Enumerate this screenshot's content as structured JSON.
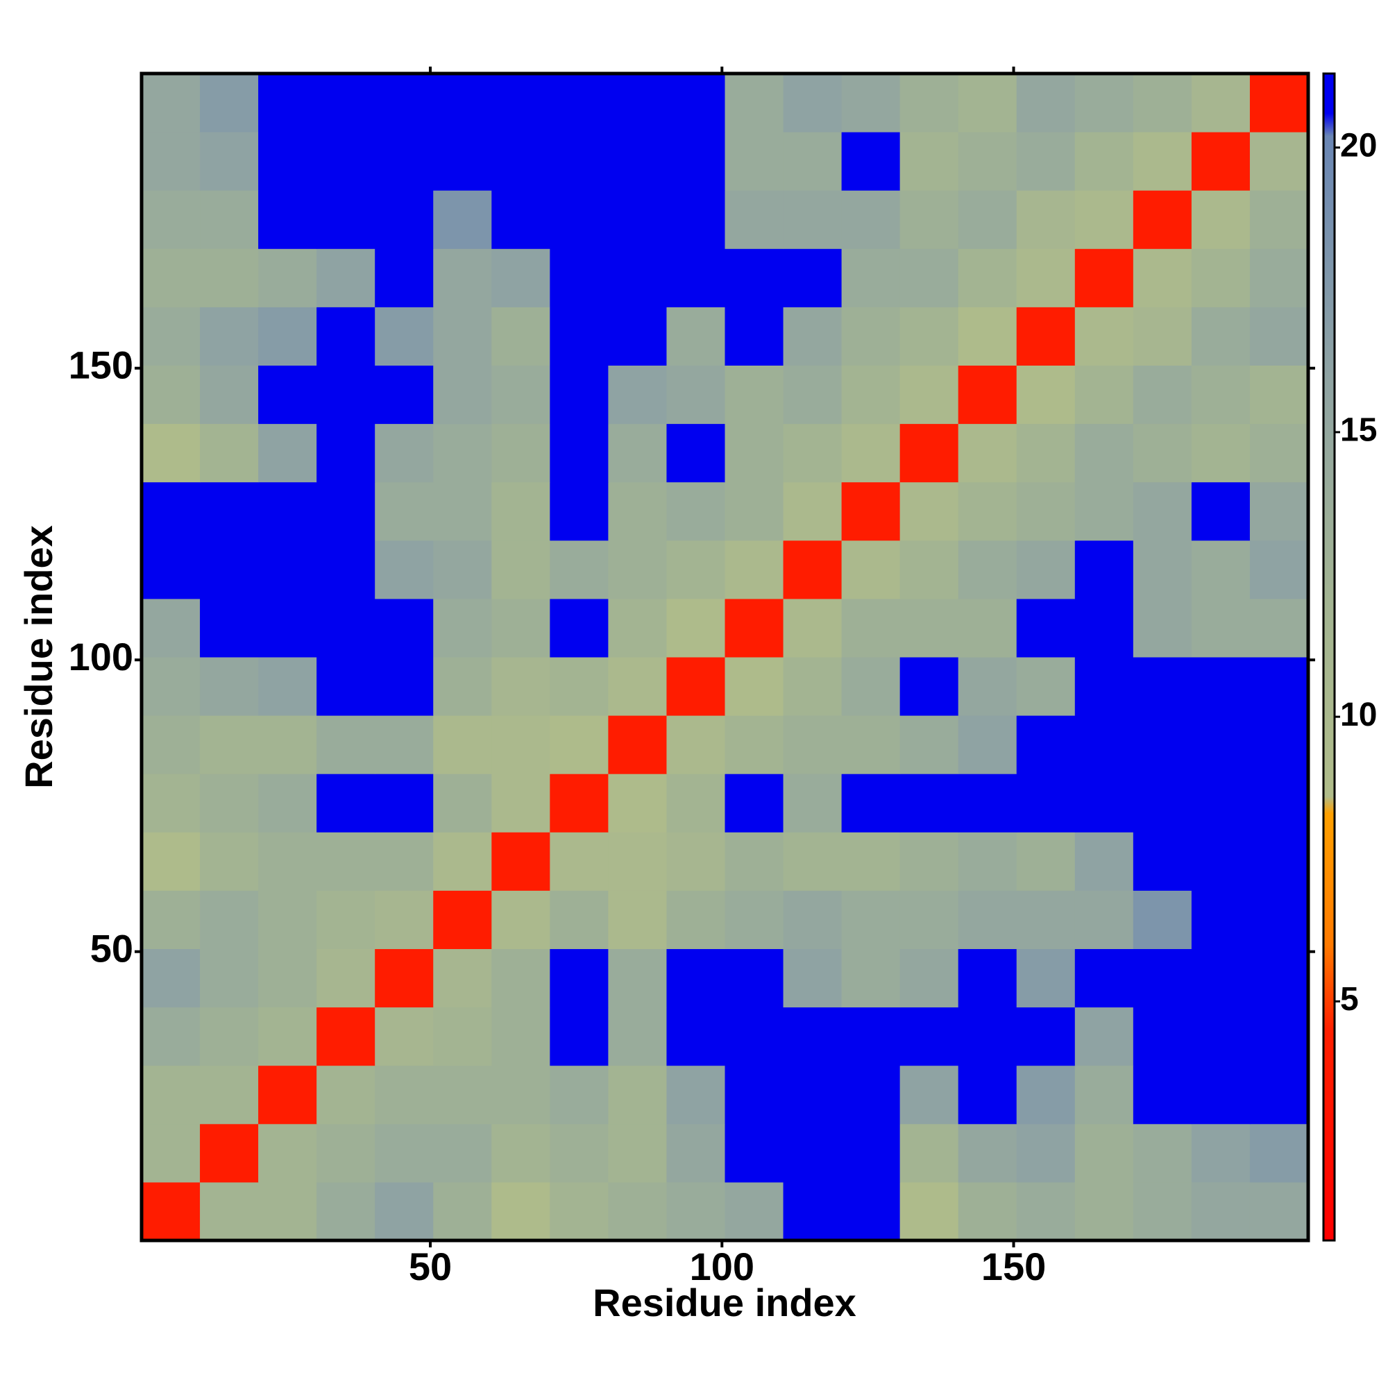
{
  "chart_data": {
    "type": "heatmap",
    "xlabel": "Residue index",
    "ylabel": "Residue index",
    "x": [
      1,
      11,
      21,
      31,
      41,
      51,
      61,
      71,
      81,
      91,
      101,
      111,
      121,
      131,
      141,
      151,
      161,
      171,
      181,
      191
    ],
    "y": [
      1,
      11,
      21,
      31,
      41,
      51,
      61,
      71,
      81,
      91,
      101,
      111,
      121,
      131,
      141,
      151,
      161,
      171,
      181,
      191
    ],
    "xlim": [
      0.5,
      200.5
    ],
    "ylim": [
      0.5,
      200.5
    ],
    "xticks": [
      50,
      100,
      150
    ],
    "yticks": [
      50,
      100,
      150
    ],
    "clim": [
      0.8,
      21.3
    ],
    "cticks": [
      5,
      10,
      15,
      20
    ],
    "colorscale": [
      [
        0.8,
        "#ff0000"
      ],
      [
        4.5,
        "#ff2000"
      ],
      [
        6,
        "#ff7a00"
      ],
      [
        8.3,
        "#ffa000"
      ],
      [
        8.6,
        "#b0bc8a"
      ],
      [
        12,
        "#a3b492"
      ],
      [
        16,
        "#8fa3a3"
      ],
      [
        20.2,
        "#6a86b4"
      ],
      [
        20.6,
        "#0000f0"
      ],
      [
        21.3,
        "#0000f0"
      ]
    ],
    "z": [
      [
        4,
        12,
        12,
        14,
        16,
        13,
        9,
        12,
        13,
        14,
        15,
        21,
        21,
        9,
        13,
        14,
        13,
        14,
        15,
        15
      ],
      [
        12,
        4,
        12,
        13,
        14,
        14,
        12,
        13,
        12,
        15,
        21,
        21,
        21,
        12,
        15,
        16,
        13,
        14,
        16,
        17
      ],
      [
        12,
        12,
        4,
        12,
        13,
        13,
        13,
        14,
        12,
        16,
        21,
        21,
        21,
        16,
        21,
        17,
        14,
        21,
        21,
        21
      ],
      [
        14,
        13,
        12,
        4,
        11,
        12,
        13,
        21,
        14,
        21,
        21,
        21,
        21,
        21,
        21,
        21,
        16,
        21,
        21,
        21
      ],
      [
        16,
        14,
        13,
        11,
        4,
        11,
        13,
        21,
        14,
        21,
        21,
        16,
        14,
        15,
        21,
        17,
        21,
        21,
        21,
        21
      ],
      [
        13,
        14,
        13,
        12,
        11,
        4,
        10,
        13,
        10,
        13,
        14,
        15,
        14,
        14,
        15,
        15,
        15,
        18,
        21,
        21
      ],
      [
        9,
        12,
        13,
        13,
        13,
        10,
        4,
        10,
        10,
        11,
        13,
        12,
        12,
        13,
        14,
        13,
        16,
        21,
        21,
        21
      ],
      [
        12,
        13,
        14,
        21,
        21,
        13,
        10,
        4,
        9,
        12,
        21,
        14,
        21,
        21,
        21,
        21,
        21,
        21,
        21,
        21
      ],
      [
        13,
        12,
        12,
        14,
        14,
        10,
        10,
        9,
        4,
        10,
        12,
        13,
        13,
        14,
        16,
        21,
        21,
        21,
        21,
        21
      ],
      [
        14,
        15,
        16,
        21,
        21,
        13,
        11,
        12,
        10,
        4,
        9,
        12,
        14,
        21,
        15,
        14,
        21,
        21,
        21,
        21
      ],
      [
        15,
        21,
        21,
        21,
        21,
        14,
        13,
        21,
        12,
        9,
        4,
        10,
        13,
        13,
        13,
        21,
        21,
        15,
        14,
        14
      ],
      [
        21,
        21,
        21,
        21,
        16,
        15,
        12,
        14,
        13,
        12,
        10,
        4,
        10,
        12,
        14,
        15,
        21,
        15,
        14,
        16
      ],
      [
        21,
        21,
        21,
        21,
        14,
        14,
        12,
        21,
        13,
        14,
        13,
        10,
        4,
        10,
        12,
        13,
        14,
        15,
        21,
        15
      ],
      [
        9,
        12,
        16,
        21,
        15,
        14,
        13,
        21,
        14,
        21,
        13,
        12,
        10,
        4,
        10,
        12,
        14,
        13,
        12,
        13
      ],
      [
        13,
        15,
        21,
        21,
        21,
        15,
        14,
        21,
        16,
        15,
        13,
        14,
        12,
        10,
        4,
        9,
        12,
        14,
        13,
        12
      ],
      [
        14,
        16,
        17,
        21,
        17,
        15,
        13,
        21,
        21,
        14,
        21,
        15,
        13,
        12,
        9,
        4,
        10,
        11,
        14,
        15
      ],
      [
        13,
        13,
        14,
        16,
        21,
        15,
        16,
        21,
        21,
        21,
        21,
        21,
        14,
        14,
        12,
        10,
        4,
        10,
        12,
        14
      ],
      [
        14,
        14,
        21,
        21,
        21,
        18,
        21,
        21,
        21,
        21,
        15,
        15,
        15,
        13,
        14,
        11,
        10,
        4,
        10,
        13
      ],
      [
        15,
        16,
        21,
        21,
        21,
        21,
        21,
        21,
        21,
        21,
        14,
        14,
        21,
        12,
        13,
        14,
        12,
        10,
        4,
        11
      ],
      [
        15,
        17,
        21,
        21,
        21,
        21,
        21,
        21,
        21,
        21,
        14,
        16,
        15,
        13,
        12,
        15,
        14,
        13,
        11,
        4
      ]
    ]
  }
}
